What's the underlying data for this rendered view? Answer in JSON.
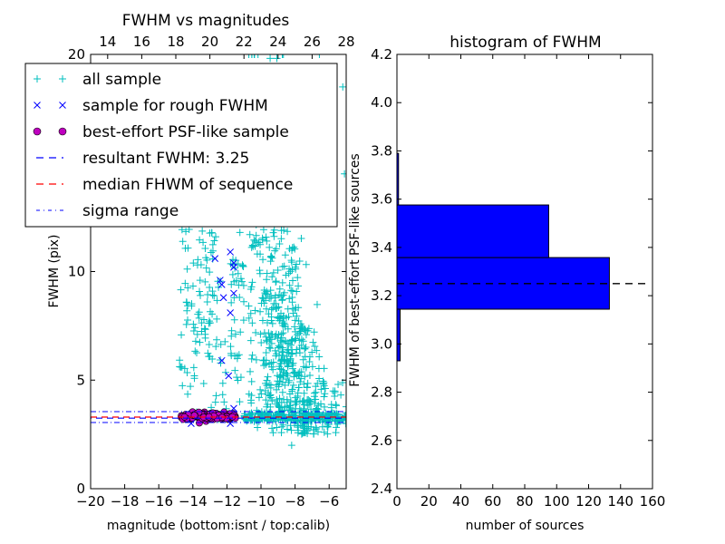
{
  "chart_data": [
    {
      "type": "scatter",
      "title": "FWHM vs magnitudes",
      "xlabel": "magnitude (bottom:isnt / top:calib)",
      "ylabel": "FWHM (pix)",
      "xlim": [
        -20,
        -5
      ],
      "ylim": [
        0,
        20
      ],
      "x_ticks": [
        "−20",
        "−18",
        "−16",
        "−14",
        "−12",
        "−10",
        "−8",
        "−6"
      ],
      "x_tick_values": [
        -20,
        -18,
        -16,
        -14,
        -12,
        -10,
        -8,
        -6
      ],
      "top_xlim": [
        13,
        28
      ],
      "top_ticks": [
        "14",
        "16",
        "18",
        "20",
        "22",
        "24",
        "26",
        "28"
      ],
      "top_tick_values": [
        14,
        16,
        18,
        20,
        22,
        24,
        26,
        28
      ],
      "y_ticks": [
        "0",
        "5",
        "10",
        "20"
      ],
      "y_tick_values": [
        0,
        5,
        10,
        20
      ],
      "legend": {
        "placement": "upper-left",
        "entries": [
          {
            "label": "all sample",
            "marker": "plus",
            "color": "#00bfbf"
          },
          {
            "label": "sample for rough FWHM",
            "marker": "x",
            "color": "#0000ff"
          },
          {
            "label": "best-effort PSF-like sample",
            "marker": "circle",
            "color": "#bf00bf"
          },
          {
            "label": "resultant FWHM: 3.25",
            "marker": "dashed",
            "color": "#0000ff"
          },
          {
            "label": "median FHWM of sequence",
            "marker": "dashed",
            "color": "#ff0000"
          },
          {
            "label": "sigma range",
            "marker": "dashdot",
            "color": "#0000ff"
          }
        ]
      },
      "lines": {
        "resultant_fwhm": 3.25,
        "median_fwhm": 3.3,
        "sigma_low": 3.05,
        "sigma_high": 3.55
      },
      "series": [
        {
          "name": "all sample",
          "clusters": [
            {
              "x_range": [
                -14.8,
                -11.0
              ],
              "y_range": [
                3.0,
                12.0
              ],
              "count": 160
            },
            {
              "x_range": [
                -10.5,
                -5.0
              ],
              "y_range": [
                2.5,
                20.0
              ],
              "count": 650
            },
            {
              "x_range": [
                -11.0,
                -5.0
              ],
              "y_range": [
                3.1,
                3.5
              ],
              "count": 200
            }
          ],
          "points": [
            [
              -8.2,
              2.0
            ],
            [
              -5.2,
              18.5
            ],
            [
              -5.1,
              14.5
            ]
          ]
        },
        {
          "name": "sample for rough FWHM",
          "points": [
            [
              -12.7,
              10.6
            ],
            [
              -11.8,
              10.9
            ],
            [
              -11.6,
              10.4
            ],
            [
              -11.6,
              10.2
            ],
            [
              -12.4,
              9.6
            ],
            [
              -12.3,
              9.4
            ],
            [
              -12.2,
              8.8
            ],
            [
              -11.6,
              9.0
            ],
            [
              -11.8,
              8.1
            ],
            [
              -12.3,
              5.9
            ],
            [
              -11.9,
              5.2
            ],
            [
              -14.1,
              3.0
            ],
            [
              -11.8,
              3.0
            ],
            [
              -11.6,
              3.7
            ]
          ]
        },
        {
          "name": "best-effort PSF-like sample",
          "x_range": [
            -14.7,
            -11.5
          ],
          "y_range": [
            3.15,
            3.55
          ],
          "count": 130
        }
      ]
    },
    {
      "type": "bar",
      "orientation": "horizontal",
      "title": "histogram of FWHM",
      "xlabel": "number of sources",
      "ylabel": "FWHM of best-effort PSF-like sources",
      "xlim": [
        0,
        160
      ],
      "ylim": [
        2.4,
        4.2
      ],
      "x_ticks": [
        "0",
        "20",
        "40",
        "60",
        "80",
        "100",
        "120",
        "140",
        "160"
      ],
      "x_tick_values": [
        0,
        20,
        40,
        60,
        80,
        100,
        120,
        140,
        160
      ],
      "y_ticks": [
        "2.4",
        "2.6",
        "2.8",
        "3.0",
        "3.2",
        "3.4",
        "3.6",
        "3.8",
        "4.0",
        "4.2"
      ],
      "y_tick_values": [
        2.4,
        2.6,
        2.8,
        3.0,
        3.2,
        3.4,
        3.6,
        3.8,
        4.0,
        4.2
      ],
      "bins": [
        {
          "low": 2.93,
          "high": 3.144,
          "count": 2
        },
        {
          "low": 3.144,
          "high": 3.358,
          "count": 133
        },
        {
          "low": 3.358,
          "high": 3.576,
          "count": 95
        },
        {
          "low": 3.576,
          "high": 3.79,
          "count": 1
        }
      ],
      "bar_color": "#0000ff",
      "reference_line": 3.25
    }
  ]
}
